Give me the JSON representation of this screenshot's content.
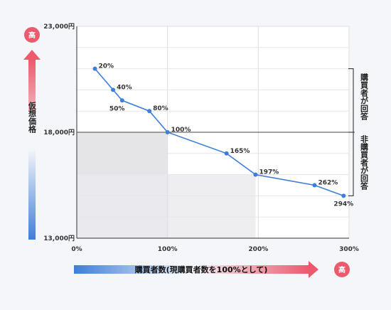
{
  "chart_data": {
    "type": "line",
    "xlabel": "購買者数(現購買者数を100%として)",
    "ylabel": "仮想価格",
    "x_high_label": "高",
    "y_high_label": "高",
    "xlim": [
      0,
      300
    ],
    "ylim": [
      13000,
      23000
    ],
    "x_ticks": [
      {
        "v": 0,
        "label": "0%"
      },
      {
        "v": 100,
        "label": "100%"
      },
      {
        "v": 200,
        "label": "200%"
      },
      {
        "v": 300,
        "label": "300%"
      }
    ],
    "y_ticks": [
      {
        "v": 23000,
        "label": "23,000円"
      },
      {
        "v": 18000,
        "label": "18,000円"
      },
      {
        "v": 13000,
        "label": "13,000円"
      }
    ],
    "points": [
      {
        "x": 20,
        "y": 21000,
        "label": "20%"
      },
      {
        "x": 40,
        "y": 20000,
        "label": "40%"
      },
      {
        "x": 50,
        "y": 19500,
        "label": "50%"
      },
      {
        "x": 80,
        "y": 19000,
        "label": "80%"
      },
      {
        "x": 100,
        "y": 18000,
        "label": "100%"
      },
      {
        "x": 165,
        "y": 17000,
        "label": "165%"
      },
      {
        "x": 197,
        "y": 16000,
        "label": "197%"
      },
      {
        "x": 262,
        "y": 15500,
        "label": "262%"
      },
      {
        "x": 294,
        "y": 15000,
        "label": "294%"
      }
    ],
    "regions": [
      {
        "label": "購買者が回答",
        "y_from": 18000,
        "y_to": 21000
      },
      {
        "label": "非購買者が回答",
        "y_from": 15000,
        "y_to": 18000
      }
    ],
    "shaded": [
      {
        "x_to": 100,
        "y_from": 13000,
        "y_to": 18000
      },
      {
        "x_to": 197,
        "y_from": 13000,
        "y_to": 16000
      }
    ],
    "grid": true,
    "colors": {
      "line": "#3f7ed8",
      "high_badge": "#ec5a6e"
    }
  }
}
